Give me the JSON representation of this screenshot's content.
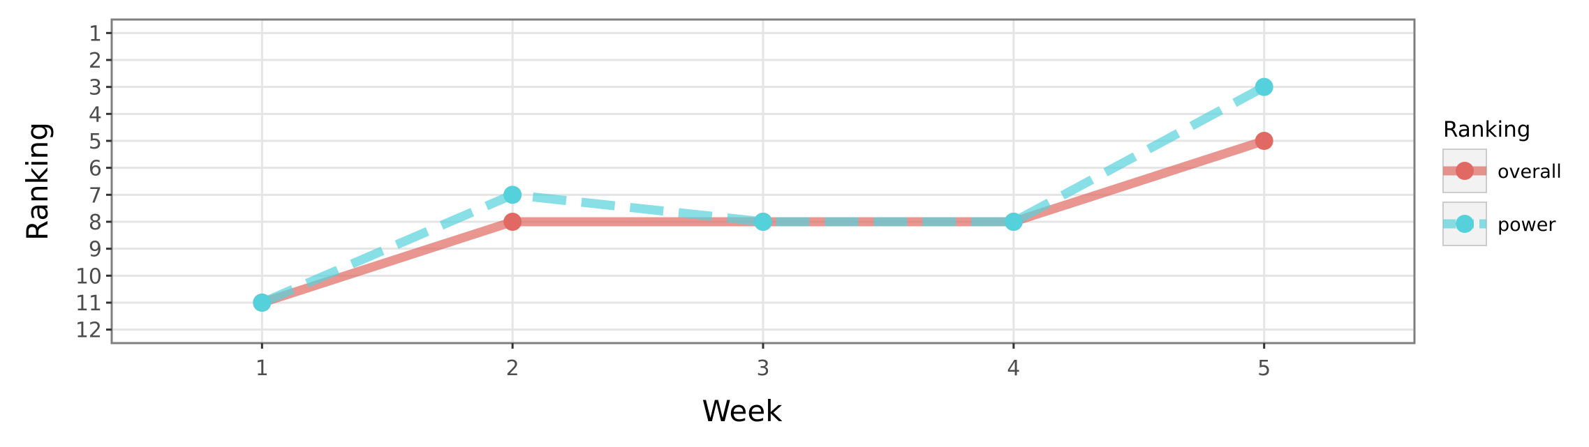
{
  "chart_data": {
    "type": "line",
    "title": "",
    "xlabel": "Week",
    "ylabel": "Ranking",
    "x": [
      1,
      2,
      3,
      4,
      5
    ],
    "xlim": [
      0.4,
      5.6
    ],
    "ylim": [
      12.5,
      0.5
    ],
    "y_reversed": true,
    "xticks": [
      "1",
      "2",
      "3",
      "4",
      "5"
    ],
    "yticks": [
      "1",
      "2",
      "3",
      "4",
      "5",
      "6",
      "7",
      "8",
      "9",
      "10",
      "11",
      "12"
    ],
    "grid": true,
    "legend": {
      "title": "Ranking",
      "placement": "right"
    },
    "series": [
      {
        "name": "overall",
        "values": [
          11,
          8,
          8,
          8,
          5
        ],
        "color": "#e06a63",
        "line_style": "solid",
        "marker": "circle"
      },
      {
        "name": "power",
        "values": [
          11,
          7,
          8,
          8,
          3
        ],
        "color": "#55d1dc",
        "line_style": "dashed",
        "marker": "circle"
      }
    ]
  }
}
